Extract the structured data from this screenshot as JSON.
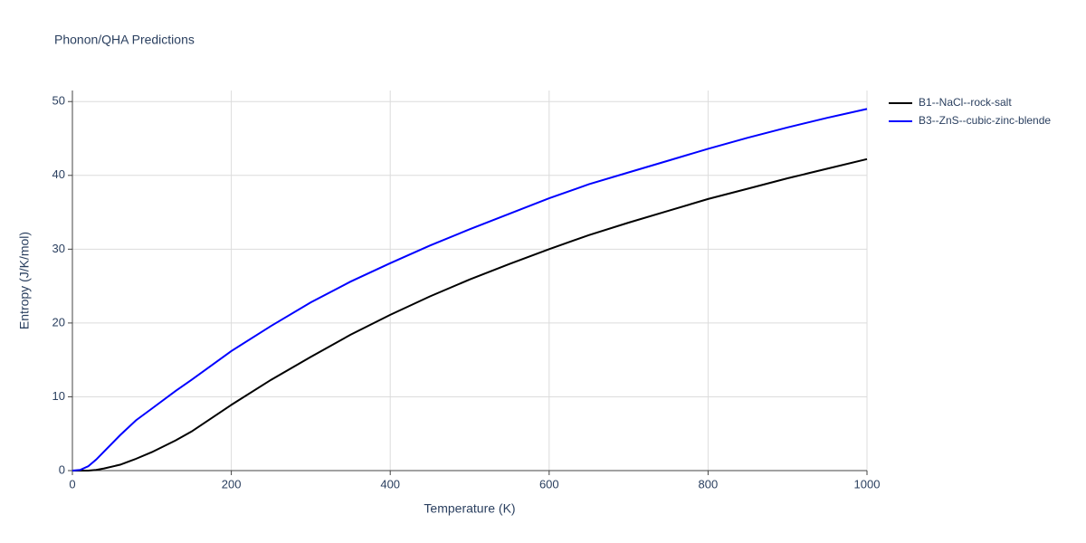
{
  "chart_data": {
    "type": "line",
    "title": "Phonon/QHA Predictions",
    "x_label": "Temperature (K)",
    "y_label": "Entropy (J/K/mol)",
    "x": [
      0,
      10,
      20,
      30,
      40,
      60,
      80,
      100,
      130,
      150,
      200,
      250,
      300,
      350,
      400,
      450,
      500,
      550,
      600,
      650,
      700,
      750,
      800,
      850,
      900,
      950,
      1000
    ],
    "series": [
      {
        "name": "B1--NaCl--rock-salt",
        "color": "#000000",
        "values": [
          0,
          0,
          0,
          0.1,
          0.3,
          0.8,
          1.6,
          2.5,
          4.1,
          5.3,
          8.9,
          12.3,
          15.4,
          18.4,
          21.1,
          23.6,
          25.9,
          28.0,
          30.0,
          31.9,
          33.6,
          35.2,
          36.8,
          38.2,
          39.6,
          40.9,
          42.2
        ]
      },
      {
        "name": "B3--ZnS--cubic-zinc-blende",
        "color": "#0000ff",
        "values": [
          0,
          0.1,
          0.6,
          1.5,
          2.6,
          4.8,
          6.8,
          8.4,
          10.8,
          12.3,
          16.2,
          19.6,
          22.8,
          25.6,
          28.1,
          30.5,
          32.7,
          34.8,
          36.9,
          38.8,
          40.4,
          42.0,
          43.6,
          45.1,
          46.5,
          47.8,
          49.0
        ]
      }
    ],
    "xlim": [
      0,
      1000
    ],
    "ylim": [
      0,
      51.5
    ],
    "xticks": [
      0,
      200,
      400,
      600,
      800,
      1000
    ],
    "yticks": [
      0,
      10,
      20,
      30,
      40,
      50
    ],
    "grid": true,
    "legend": "outside-right"
  }
}
